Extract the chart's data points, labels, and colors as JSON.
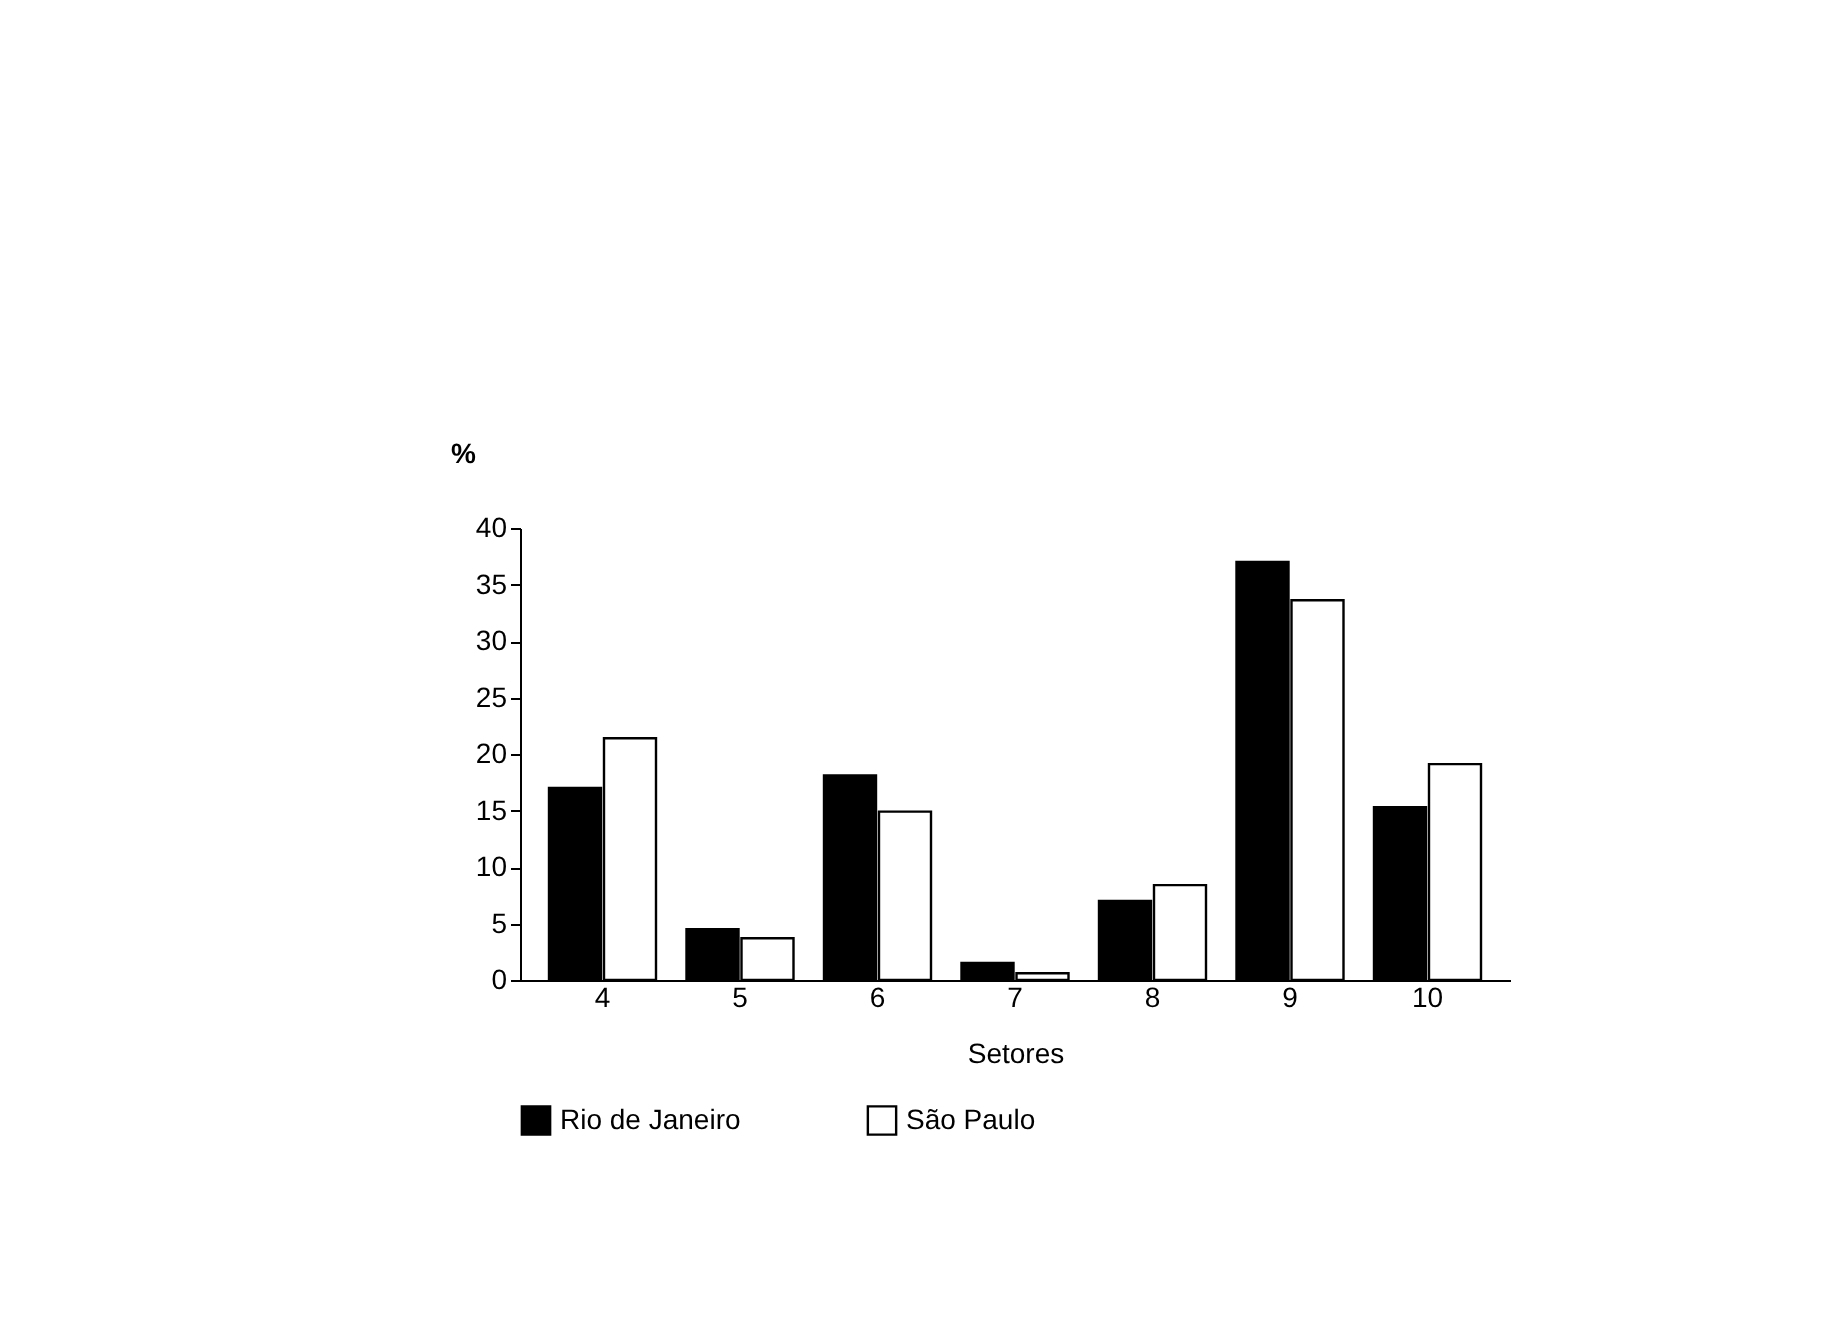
{
  "chart_data": {
    "type": "bar",
    "xlabel": "Setores",
    "ylabel": "%",
    "categories": [
      "4",
      "5",
      "6",
      "7",
      "8",
      "9",
      "10"
    ],
    "series": [
      {
        "name": "Rio de Janeiro",
        "color": "#000000",
        "values": [
          17.0,
          4.5,
          18.1,
          1.5,
          7.0,
          37.0,
          15.3
        ]
      },
      {
        "name": "São Paulo",
        "color": "#ffffff",
        "values": [
          21.4,
          3.7,
          14.9,
          0.6,
          8.4,
          33.6,
          19.1
        ]
      }
    ],
    "ylim": [
      0,
      40
    ],
    "yticks": [
      0,
      5,
      10,
      15,
      20,
      25,
      30,
      35,
      40
    ],
    "grid": false,
    "legend": "bottom"
  }
}
